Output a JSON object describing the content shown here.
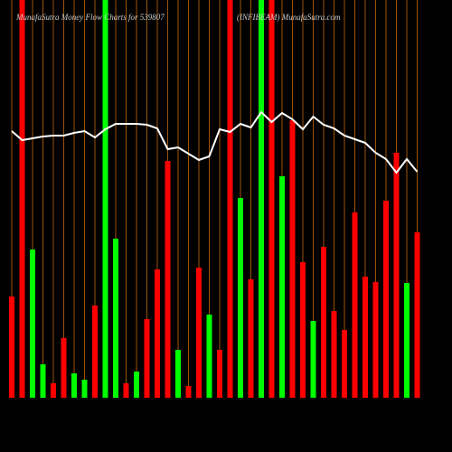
{
  "chart_data": {
    "type": "bar",
    "title": "MunafaSutra  Money Flow  Charts for 539807",
    "subtitle": "(INFIBEAM)  MunafaSutra.com",
    "categories": [
      null,
      null,
      null,
      null,
      null,
      null,
      null,
      null,
      null,
      null,
      null,
      null,
      null,
      null,
      null,
      null,
      null,
      null,
      null,
      null,
      null,
      null,
      null,
      null,
      null,
      null,
      null,
      null,
      null,
      null,
      null,
      null,
      null,
      null,
      null,
      null,
      null,
      null,
      null,
      null
    ],
    "values": [
      112,
      440,
      164,
      37,
      16,
      66,
      27,
      20,
      102,
      440,
      176,
      16,
      29,
      87,
      142,
      262,
      53,
      13,
      144,
      92,
      53,
      440,
      221,
      131,
      440,
      440,
      245,
      307,
      150,
      85,
      167,
      96,
      75,
      205,
      134,
      128,
      218,
      271,
      127,
      183
    ],
    "colors": [
      "#ff0000",
      "#ff0000",
      "#00ff00",
      "#00ff00",
      "#ff0000",
      "#ff0000",
      "#00ff00",
      "#00ff00",
      "#ff0000",
      "#00ff00",
      "#00ff00",
      "#ff0000",
      "#00ff00",
      "#ff0000",
      "#ff0000",
      "#ff0000",
      "#00ff00",
      "#ff0000",
      "#ff0000",
      "#00ff00",
      "#ff0000",
      "#ff0000",
      "#00ff00",
      "#ff0000",
      "#00ff00",
      "#ff0000",
      "#00ff00",
      "#ff0000",
      "#ff0000",
      "#00ff00",
      "#ff0000",
      "#ff0000",
      "#ff0000",
      "#ff0000",
      "#ff0000",
      "#ff0000",
      "#ff0000",
      "#ff0000",
      "#00ff00",
      "#ff0000"
    ],
    "line_values": [
      295,
      285,
      287,
      289,
      290,
      290,
      293,
      295,
      288,
      297,
      303,
      303,
      303,
      302,
      298,
      275,
      277,
      270,
      263,
      267,
      297,
      294,
      303,
      299,
      316,
      305,
      315,
      308,
      297,
      311,
      302,
      298,
      290,
      286,
      282,
      271,
      264,
      249,
      264,
      250
    ],
    "line_color": "#ffffff",
    "ylim": [
      0,
      440
    ]
  }
}
